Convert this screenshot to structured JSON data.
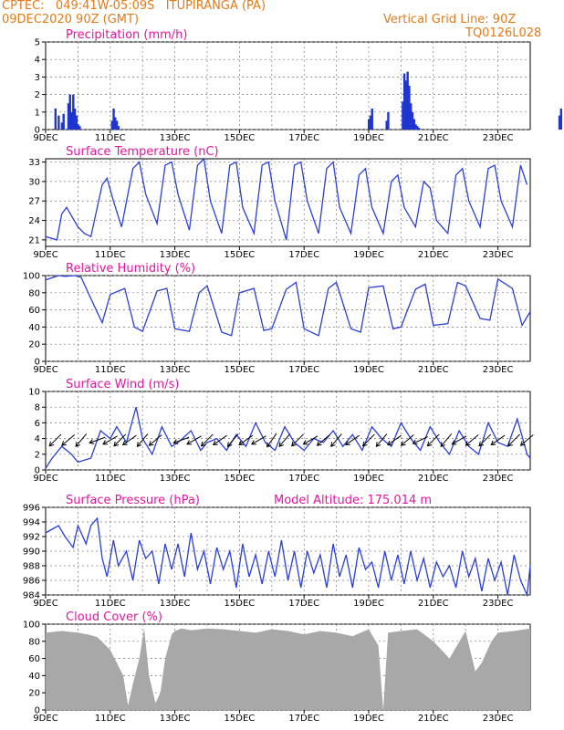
{
  "header": {
    "line1_left": "CPTEC:   049:41W-05:09S   ITUPIRANGA (PA)",
    "line2_left": "09DEC2020 90Z (GMT)",
    "line1_right": "Vertical Grid Line: 90Z",
    "line2_right": "TQ0126L028",
    "model_altitude": "Model Altitude: 175.014 m"
  },
  "colors": {
    "header": "#e07b1a",
    "title": "#e0199a",
    "line": "#2b3fd6",
    "cloud": "#a8a8a8",
    "bar": "#1f35d0"
  },
  "chart_data": [
    {
      "type": "bar",
      "title": "Precipitation (mm/h)",
      "x_ticks": [
        "9DEC",
        "11DEC",
        "13DEC",
        "15DEC",
        "17DEC",
        "19DEC",
        "21DEC",
        "23DEC"
      ],
      "ylim": [
        0,
        5
      ],
      "y_ticks": [
        "0",
        "1",
        "2",
        "3",
        "4",
        "5"
      ],
      "grid": true,
      "x_unit": "day",
      "x": [
        0.3,
        0.4,
        0.5,
        0.55,
        0.7,
        0.75,
        0.8,
        0.85,
        0.9,
        0.95,
        1.0,
        1.05,
        2.05,
        2.1,
        2.15,
        2.2,
        2.25,
        10.0,
        10.05,
        10.1,
        10.55,
        10.6,
        11.05,
        11.1,
        11.15,
        11.2,
        11.25,
        11.3,
        11.35,
        11.4,
        11.45,
        11.5,
        11.55,
        15.9,
        15.95
      ],
      "values": [
        1.2,
        0.8,
        0.4,
        0.9,
        1.5,
        2.0,
        1.0,
        2.0,
        1.2,
        0.8,
        0.3,
        0.2,
        0.5,
        1.2,
        0.7,
        0.5,
        0.2,
        0.6,
        0.8,
        1.2,
        0.5,
        1.0,
        1.6,
        3.2,
        2.8,
        3.3,
        2.5,
        1.5,
        1.0,
        0.6,
        0.3,
        0.2,
        0.1,
        0.8,
        1.2
      ]
    },
    {
      "type": "line",
      "title": "Surface Temperature (nC)",
      "x_ticks": [
        "9DEC",
        "11DEC",
        "13DEC",
        "15DEC",
        "17DEC",
        "19DEC",
        "21DEC",
        "23DEC"
      ],
      "ylim": [
        20,
        33.5
      ],
      "y_ticks": [
        "21",
        "24",
        "27",
        "30",
        "33"
      ],
      "grid": true,
      "x_unit": "day",
      "x": [
        0,
        0.35,
        0.5,
        0.65,
        1.0,
        1.2,
        1.4,
        1.75,
        1.9,
        2.1,
        2.35,
        2.7,
        2.9,
        3.1,
        3.45,
        3.7,
        3.9,
        4.1,
        4.45,
        4.7,
        4.9,
        5.1,
        5.45,
        5.7,
        5.9,
        6.1,
        6.45,
        6.7,
        6.9,
        7.1,
        7.45,
        7.7,
        7.9,
        8.1,
        8.45,
        8.7,
        8.9,
        9.1,
        9.45,
        9.7,
        9.9,
        10.1,
        10.45,
        10.7,
        10.9,
        11.1,
        11.45,
        11.7,
        11.9,
        12.1,
        12.45,
        12.7,
        12.9,
        13.1,
        13.45,
        13.7,
        13.9,
        14.1,
        14.45,
        14.7,
        14.9
      ],
      "values": [
        21.5,
        21,
        25,
        26,
        23,
        22,
        21.5,
        29.5,
        30.5,
        27,
        23,
        32,
        33,
        28,
        23.5,
        32.5,
        33,
        28,
        22.5,
        32.5,
        33.5,
        27,
        22,
        32.5,
        33,
        26,
        22,
        32.5,
        33,
        27,
        21,
        32.5,
        33,
        27,
        22,
        32,
        33,
        26,
        22,
        31,
        32,
        26,
        22,
        30,
        31,
        26,
        23,
        30,
        29,
        24,
        22,
        31,
        32,
        27,
        23,
        32,
        32.5,
        27,
        23,
        32.5,
        29.5
      ]
    },
    {
      "type": "line",
      "title": "Relative Humidity (%)",
      "x_ticks": [
        "9DEC",
        "11DEC",
        "13DEC",
        "15DEC",
        "17DEC",
        "19DEC",
        "21DEC",
        "23DEC"
      ],
      "ylim": [
        0,
        100
      ],
      "y_ticks": [
        "0",
        "20",
        "40",
        "60",
        "80",
        "100"
      ],
      "grid": true,
      "x_unit": "day",
      "x": [
        0,
        0.4,
        0.6,
        0.9,
        1.1,
        1.5,
        1.75,
        2.0,
        2.45,
        2.75,
        3.0,
        3.45,
        3.75,
        4.0,
        4.45,
        4.75,
        5.0,
        5.45,
        5.75,
        6.0,
        6.45,
        6.75,
        7.0,
        7.45,
        7.75,
        8.0,
        8.45,
        8.75,
        9.0,
        9.45,
        9.75,
        10.0,
        10.45,
        10.75,
        11.0,
        11.45,
        11.75,
        12.0,
        12.45,
        12.75,
        13.0,
        13.45,
        13.75,
        14.0,
        14.45,
        14.75,
        15.0
      ],
      "values": [
        95,
        100,
        99,
        100,
        98,
        65,
        45,
        78,
        85,
        40,
        35,
        82,
        85,
        38,
        35,
        80,
        88,
        34,
        30,
        80,
        85,
        36,
        38,
        84,
        92,
        38,
        30,
        85,
        92,
        38,
        34,
        86,
        88,
        38,
        40,
        84,
        90,
        42,
        44,
        92,
        88,
        50,
        48,
        96,
        85,
        42,
        58
      ]
    },
    {
      "type": "line",
      "title": "Surface Wind (m/s)",
      "x_ticks": [
        "9DEC",
        "11DEC",
        "13DEC",
        "15DEC",
        "17DEC",
        "19DEC",
        "21DEC",
        "23DEC"
      ],
      "ylim": [
        0,
        10
      ],
      "y_ticks": [
        "0",
        "2",
        "4",
        "6",
        "8",
        "10"
      ],
      "grid": true,
      "x_unit": "day",
      "x": [
        0,
        0.2,
        0.5,
        0.8,
        1.0,
        1.4,
        1.7,
        2.0,
        2.2,
        2.5,
        2.8,
        3.0,
        3.3,
        3.6,
        3.9,
        4.1,
        4.5,
        4.8,
        5.0,
        5.3,
        5.6,
        5.9,
        6.2,
        6.5,
        6.8,
        7.1,
        7.4,
        7.7,
        8.0,
        8.3,
        8.6,
        8.9,
        9.2,
        9.5,
        9.8,
        10.1,
        10.4,
        10.7,
        11.0,
        11.3,
        11.6,
        11.9,
        12.2,
        12.5,
        12.8,
        13.1,
        13.4,
        13.7,
        14.0,
        14.3,
        14.6,
        14.9,
        15.0
      ],
      "values": [
        0.2,
        1.5,
        3.0,
        2.0,
        1.0,
        1.5,
        5.0,
        4.0,
        5.5,
        3.5,
        8.0,
        4.0,
        2.0,
        5.5,
        3.0,
        3.5,
        5.0,
        2.5,
        3.5,
        4.0,
        2.5,
        4.5,
        3.0,
        6.0,
        3.5,
        2.5,
        5.5,
        3.5,
        2.5,
        4.0,
        3.5,
        5.0,
        3.0,
        4.5,
        2.5,
        5.5,
        4.0,
        3.0,
        6.0,
        4.0,
        2.5,
        5.5,
        3.5,
        2.0,
        5.0,
        3.0,
        2.0,
        6.0,
        3.5,
        3.0,
        6.5,
        2.0,
        1.5
      ],
      "arrows_x": [
        0.3,
        0.7,
        1.1,
        1.6,
        2.0,
        2.3,
        2.6,
        3.0,
        3.4,
        4.2,
        4.6,
        5.0,
        5.4,
        5.8,
        6.2,
        6.6,
        7.0,
        7.4,
        7.8,
        8.2,
        8.6,
        9.0,
        9.5,
        10.0,
        10.4,
        10.8,
        11.2,
        11.6,
        12.0,
        12.4,
        12.8,
        13.2,
        13.6,
        14.0,
        14.5,
        14.9
      ],
      "arrows_dir_deg": [
        225,
        220,
        230,
        200,
        210,
        225,
        215,
        230,
        220,
        200,
        210,
        225,
        215,
        230,
        215,
        210,
        235,
        230,
        225,
        210,
        220,
        230,
        215,
        225,
        230,
        215,
        220,
        205,
        225,
        230,
        210,
        220,
        225,
        215,
        225,
        220
      ]
    },
    {
      "type": "line",
      "title": "Surface Pressure (hPa)",
      "x_ticks": [
        "9DEC",
        "11DEC",
        "13DEC",
        "15DEC",
        "17DEC",
        "19DEC",
        "21DEC",
        "23DEC"
      ],
      "ylim": [
        984,
        996
      ],
      "y_ticks": [
        "984",
        "986",
        "988",
        "990",
        "992",
        "994",
        "996"
      ],
      "grid": true,
      "x_unit": "day",
      "x": [
        0,
        0.2,
        0.4,
        0.6,
        0.85,
        1.0,
        1.25,
        1.4,
        1.6,
        1.75,
        1.9,
        2.1,
        2.25,
        2.5,
        2.7,
        2.9,
        3.1,
        3.3,
        3.5,
        3.7,
        3.9,
        4.1,
        4.3,
        4.5,
        4.7,
        4.9,
        5.1,
        5.3,
        5.5,
        5.7,
        5.9,
        6.1,
        6.3,
        6.5,
        6.7,
        6.9,
        7.1,
        7.3,
        7.5,
        7.7,
        7.9,
        8.1,
        8.3,
        8.5,
        8.7,
        8.9,
        9.1,
        9.3,
        9.5,
        9.7,
        9.9,
        10.1,
        10.3,
        10.5,
        10.7,
        10.9,
        11.1,
        11.3,
        11.5,
        11.7,
        11.9,
        12.1,
        12.3,
        12.5,
        12.7,
        12.9,
        13.1,
        13.3,
        13.5,
        13.7,
        13.9,
        14.1,
        14.3,
        14.5,
        14.7,
        14.9,
        15.0
      ],
      "values": [
        992.5,
        993,
        993.5,
        992,
        990.5,
        993.5,
        991,
        993.5,
        994.5,
        989,
        986.5,
        991.5,
        988,
        990,
        986,
        991.5,
        989,
        990,
        985.5,
        991,
        987.5,
        991,
        986.5,
        992.5,
        987.5,
        990,
        985.5,
        990.5,
        987.5,
        990,
        985,
        991,
        986.5,
        989.5,
        985.5,
        990,
        986.5,
        991.5,
        986,
        990,
        985,
        990,
        987,
        989.5,
        985,
        991,
        986.5,
        989.5,
        985,
        990.5,
        987.5,
        988.5,
        985,
        990,
        986,
        989.5,
        985.5,
        990,
        986,
        989,
        985,
        988.5,
        986.5,
        988,
        985,
        990,
        986.5,
        989,
        984.5,
        989,
        986,
        988.5,
        984,
        989.5,
        986,
        984,
        988
      ]
    },
    {
      "type": "area",
      "title": "Cloud Cover (%)",
      "x_ticks": [
        "9DEC",
        "11DEC",
        "13DEC",
        "15DEC",
        "17DEC",
        "19DEC",
        "21DEC",
        "23DEC"
      ],
      "ylim": [
        0,
        100
      ],
      "y_ticks": [
        "0",
        "20",
        "40",
        "60",
        "80",
        "100"
      ],
      "grid": true,
      "x_unit": "day",
      "x": [
        0,
        0.5,
        1.0,
        1.3,
        1.6,
        2.0,
        2.4,
        2.55,
        2.7,
        2.9,
        3.05,
        3.2,
        3.4,
        3.55,
        3.7,
        3.9,
        4.0,
        4.2,
        4.5,
        5.0,
        5.5,
        6.0,
        6.5,
        7.0,
        7.5,
        8.0,
        8.5,
        9.0,
        9.5,
        10.0,
        10.3,
        10.45,
        10.6,
        11.0,
        11.5,
        12.0,
        12.5,
        13.0,
        13.3,
        13.5,
        13.8,
        14.0,
        14.5,
        15.0
      ],
      "values": [
        90,
        92,
        90,
        88,
        85,
        70,
        40,
        5,
        30,
        60,
        95,
        40,
        8,
        20,
        60,
        88,
        92,
        95,
        93,
        95,
        94,
        92,
        90,
        94,
        92,
        88,
        92,
        90,
        86,
        94,
        75,
        0,
        90,
        92,
        94,
        80,
        60,
        92,
        45,
        55,
        80,
        90,
        92,
        95
      ]
    }
  ]
}
